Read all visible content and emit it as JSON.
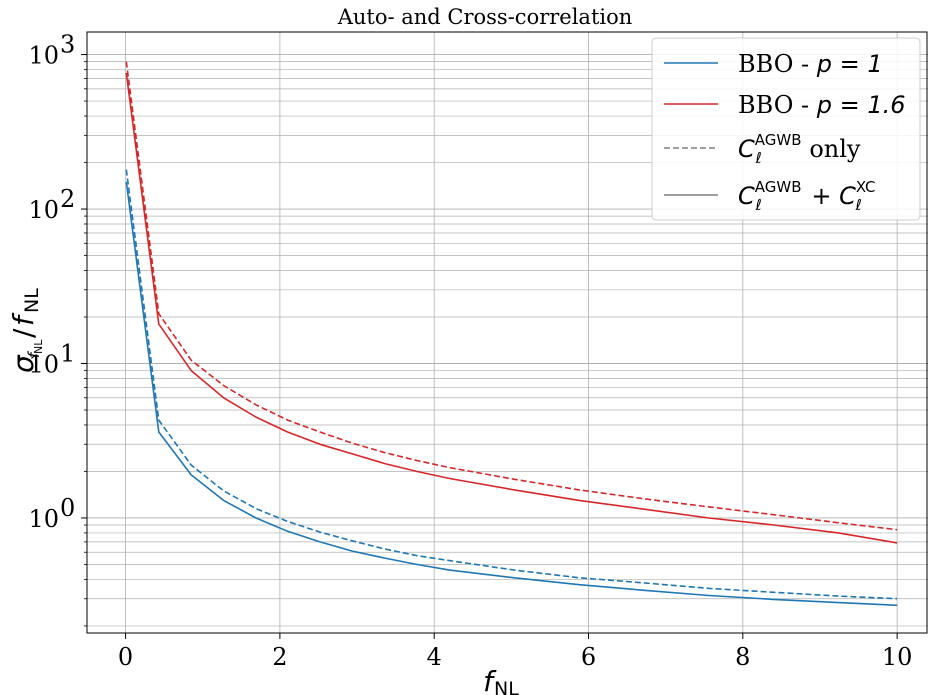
{
  "chart_data": {
    "type": "line",
    "title": "Auto- and Cross-correlation",
    "xlabel": "f_NL",
    "ylabel": "σ_{f_NL}/f_NL",
    "xlim": [
      -0.5,
      10.4
    ],
    "ylim": [
      0.18,
      1400
    ],
    "y_scale": "log",
    "grid": true,
    "legend_position": "top-right",
    "x_ticks": [
      0,
      2,
      4,
      6,
      8,
      10
    ],
    "y_ticks": [
      {
        "value": 1,
        "base": "10",
        "exp": "0"
      },
      {
        "value": 10,
        "base": "10",
        "exp": "1"
      },
      {
        "value": 100,
        "base": "10",
        "exp": "2"
      },
      {
        "value": 1000,
        "base": "10",
        "exp": "3"
      }
    ],
    "x": [
      0.01,
      0.43,
      0.85,
      1.27,
      1.69,
      2.1,
      2.52,
      2.94,
      3.36,
      3.78,
      4.2,
      5.04,
      5.88,
      6.72,
      7.56,
      8.4,
      9.24,
      10.0
    ],
    "series": [
      {
        "name": "BBO - p = 1, C_ℓ^AGWB + C_ℓ^XC",
        "color": "#1f77b4",
        "dash": "solid",
        "values": [
          150,
          3.6,
          1.9,
          1.3,
          1.0,
          0.82,
          0.7,
          0.61,
          0.55,
          0.5,
          0.46,
          0.41,
          0.37,
          0.34,
          0.315,
          0.297,
          0.283,
          0.272
        ]
      },
      {
        "name": "BBO - p = 1, C_ℓ^AGWB only",
        "color": "#1f77b4",
        "dash": "dashed",
        "values": [
          180,
          4.3,
          2.2,
          1.5,
          1.15,
          0.95,
          0.81,
          0.71,
          0.63,
          0.57,
          0.53,
          0.46,
          0.41,
          0.38,
          0.35,
          0.33,
          0.312,
          0.3
        ]
      },
      {
        "name": "BBO - p = 1.6, C_ℓ^AGWB + C_ℓ^XC",
        "color": "#d62728",
        "dash": "solid",
        "values": [
          760,
          18,
          9.0,
          6.0,
          4.5,
          3.6,
          3.0,
          2.6,
          2.25,
          2.0,
          1.8,
          1.52,
          1.3,
          1.14,
          1.0,
          0.9,
          0.8,
          0.69
        ]
      },
      {
        "name": "BBO - p = 1.6, C_ℓ^AGWB only",
        "color": "#d62728",
        "dash": "dashed",
        "values": [
          900,
          21,
          10.5,
          7.2,
          5.4,
          4.3,
          3.6,
          3.05,
          2.65,
          2.35,
          2.12,
          1.78,
          1.52,
          1.33,
          1.18,
          1.05,
          0.93,
          0.84
        ]
      }
    ],
    "legend": [
      {
        "label_text": "BBO - ",
        "label_math": "p = 1",
        "color": "#1f77b4",
        "dash": "solid"
      },
      {
        "label_text": "BBO - ",
        "label_math": "p = 1.6",
        "color": "#d62728",
        "dash": "solid"
      },
      {
        "label_text": "only",
        "label_math": "C_ℓ^AGWB",
        "color": "#7f7f7f",
        "dash": "dashed"
      },
      {
        "label_text": "",
        "label_math": "C_ℓ^AGWB + C_ℓ^XC",
        "color": "#7f7f7f",
        "dash": "solid"
      }
    ]
  }
}
